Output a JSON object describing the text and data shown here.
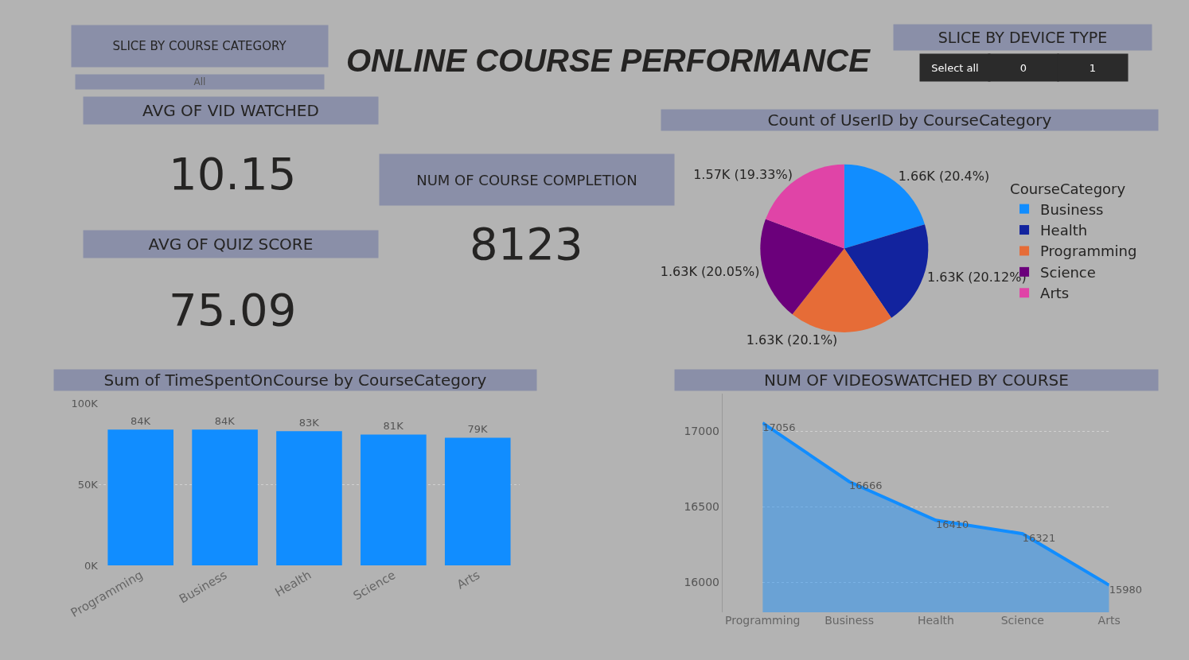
{
  "chart_data": [
    {
      "type": "other",
      "title": "ONLINE COURSE PERFORMANCE",
      "annotations": [
        "SLICE BY COURSE CATEGORY",
        "All",
        "SLICE BY DEVICE TYPE",
        "Select all",
        "0",
        "1",
        "AVG OF VID WATCHED",
        "10.15",
        "AVG OF QUIZ SCORE",
        "75.09",
        "NUM OF COURSE COMPLETION",
        "8123"
      ]
    },
    {
      "type": "pie",
      "title": "Count of UserID by CourseCategory",
      "legend_title": "CourseCategory",
      "legend": "right",
      "categories": [
        "Business",
        "Health",
        "Programming",
        "Science",
        "Arts"
      ],
      "values": [
        20.4,
        20.12,
        20.1,
        20.05,
        19.33
      ],
      "value_labels": [
        "1.66K (20.4%)",
        "1.63K (20.12%)",
        "1.63K (20.1%)",
        "1.63K (20.05%)",
        "1.57K (19.33%)"
      ],
      "colors": [
        "#118dff",
        "#12239e",
        "#e66c37",
        "#6b007b",
        "#e044a7"
      ]
    },
    {
      "type": "bar",
      "title": "Sum of TimeSpentOnCourse by CourseCategory",
      "categories": [
        "Programming",
        "Business",
        "Health",
        "Science",
        "Arts"
      ],
      "values": [
        84000,
        84000,
        83000,
        81000,
        79000
      ],
      "value_labels": [
        "84K",
        "84K",
        "83K",
        "81K",
        "79K"
      ],
      "color": "#118dff",
      "ylim": [
        0,
        100000
      ],
      "yticks": [
        {
          "value": 0,
          "label": "0K"
        },
        {
          "value": 50000,
          "label": "50K"
        },
        {
          "value": 100000,
          "label": "100K"
        }
      ],
      "grid": "y"
    },
    {
      "type": "area",
      "title": "NUM OF VIDEOSWATCHED BY COURSE",
      "categories": [
        "Programming",
        "Business",
        "Health",
        "Science",
        "Arts"
      ],
      "values": [
        17056,
        16666,
        16410,
        16321,
        15980
      ],
      "color": "#118dff",
      "data_labels": true,
      "ylim": [
        15800,
        17250
      ],
      "yticks": [
        16000,
        16500,
        17000
      ],
      "grid": "y"
    }
  ]
}
